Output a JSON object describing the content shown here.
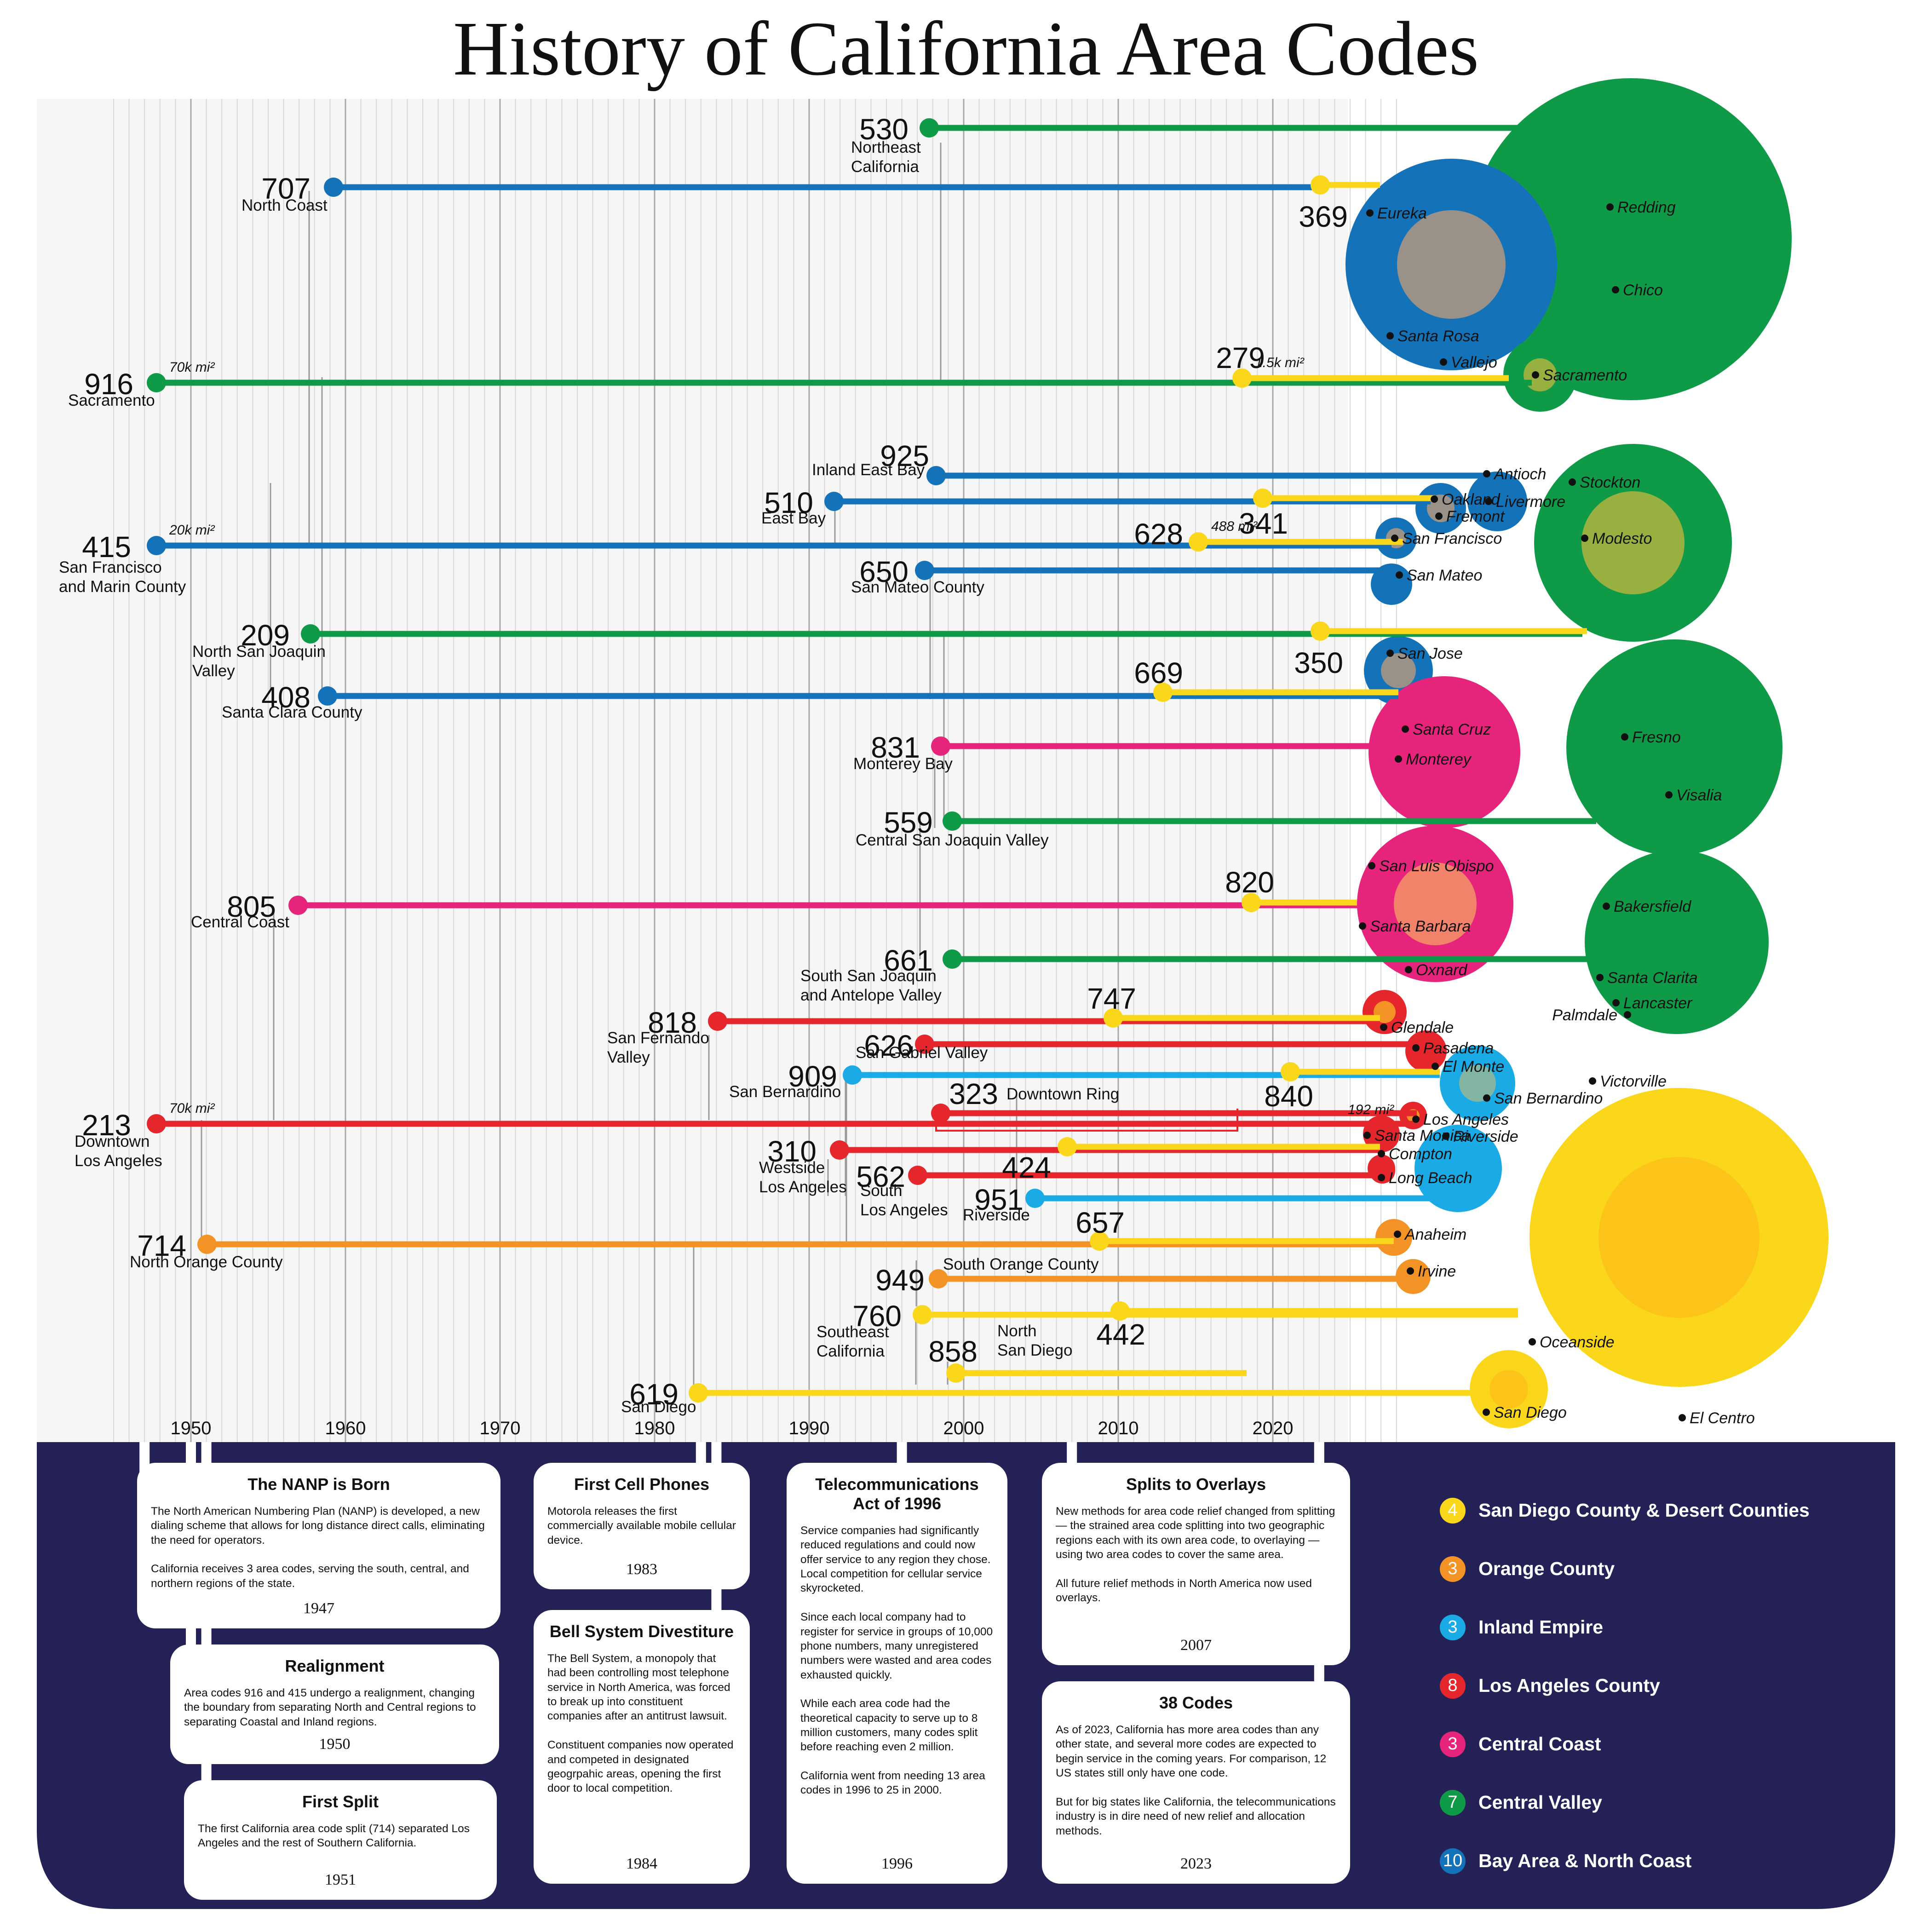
{
  "title": "History of California Area Codes",
  "colors": {
    "sandiego": "#fbd71b",
    "orange": "#f39325",
    "inland": "#1aaae6",
    "la": "#e5262c",
    "central_coast": "#e7247b",
    "central_valley": "#0f9a48",
    "bay": "#1472b9",
    "navy": "#242157"
  },
  "axis": {
    "years": [
      1950,
      1960,
      1970,
      1980,
      1990,
      2000,
      2010,
      2020
    ]
  },
  "codes": [
    {
      "code": "530",
      "region": "Northeast California",
      "year": 1997,
      "group": "central_valley"
    },
    {
      "code": "707",
      "region": "North Coast",
      "year": 1959,
      "group": "bay"
    },
    {
      "code": "369",
      "region": "",
      "year": 2023,
      "group": "sandiego_overlay"
    },
    {
      "code": "916",
      "region": "Sacramento",
      "year": 1947,
      "group": "central_valley",
      "area_note": "70k mi²"
    },
    {
      "code": "279",
      "region": "",
      "year": 2018,
      "group": "overlay",
      "area_note": "1.5k mi²"
    },
    {
      "code": "925",
      "region": "Inland East Bay",
      "year": 1998,
      "group": "bay"
    },
    {
      "code": "510",
      "region": "East Bay",
      "year": 1991,
      "group": "bay"
    },
    {
      "code": "341",
      "region": "",
      "year": 2019,
      "group": "overlay"
    },
    {
      "code": "415",
      "region": "San Francisco and Marin County",
      "year": 1947,
      "group": "bay",
      "area_note": "20k mi²"
    },
    {
      "code": "628",
      "region": "",
      "year": 2015,
      "group": "overlay",
      "area_note": "488 mi²"
    },
    {
      "code": "650",
      "region": "San Mateo County",
      "year": 1997,
      "group": "bay"
    },
    {
      "code": "209",
      "region": "North San Joaquin Valley",
      "year": 1958,
      "group": "central_valley"
    },
    {
      "code": "350",
      "region": "",
      "year": 2022,
      "group": "overlay"
    },
    {
      "code": "408",
      "region": "Santa Clara County",
      "year": 1959,
      "group": "bay"
    },
    {
      "code": "669",
      "region": "",
      "year": 2012,
      "group": "overlay"
    },
    {
      "code": "831",
      "region": "Monterey Bay",
      "year": 1998,
      "group": "central_coast"
    },
    {
      "code": "559",
      "region": "Central San Joaquin Valley",
      "year": 1998,
      "group": "central_valley"
    },
    {
      "code": "805",
      "region": "Central Coast",
      "year": 1957,
      "group": "central_coast"
    },
    {
      "code": "820",
      "region": "",
      "year": 2018,
      "group": "overlay"
    },
    {
      "code": "661",
      "region": "South San Joaquin and Antelope Valley",
      "year": 1999,
      "group": "central_valley"
    },
    {
      "code": "818",
      "region": "San Fernando Valley",
      "year": 1984,
      "group": "la"
    },
    {
      "code": "747",
      "region": "",
      "year": 2009,
      "group": "overlay"
    },
    {
      "code": "626",
      "region": "San Gabriel Valley",
      "year": 1997,
      "group": "la"
    },
    {
      "code": "909",
      "region": "San Bernardino",
      "year": 1992,
      "group": "inland"
    },
    {
      "code": "840",
      "region": "",
      "year": 2021,
      "group": "overlay"
    },
    {
      "code": "323",
      "region": "Downtown Ring",
      "year": 1998,
      "group": "la"
    },
    {
      "code": "213",
      "region": "Downtown Los Angeles",
      "year": 1947,
      "group": "la",
      "area_note": "70k mi²"
    },
    {
      "code": "310",
      "region": "Westside Los Angeles",
      "year": 1991,
      "group": "la"
    },
    {
      "code": "424",
      "region": "",
      "year": 2006,
      "group": "overlay"
    },
    {
      "code": "562",
      "region": "South Los Angeles",
      "year": 1997,
      "group": "la"
    },
    {
      "code": "951",
      "region": "Riverside",
      "year": 2004,
      "group": "inland"
    },
    {
      "code": "714",
      "region": "North Orange County",
      "year": 1951,
      "group": "orange"
    },
    {
      "code": "657",
      "region": "",
      "year": 2008,
      "group": "overlay"
    },
    {
      "code": "949",
      "region": "South Orange County",
      "year": 1998,
      "group": "orange"
    },
    {
      "code": "760",
      "region": "Southeast California",
      "year": 1997,
      "group": "sandiego"
    },
    {
      "code": "442",
      "region": "",
      "year": 2009,
      "group": "overlay"
    },
    {
      "code": "858",
      "region": "North San Diego",
      "year": 1999,
      "group": "sandiego"
    },
    {
      "code": "619",
      "region": "San Diego",
      "year": 1982,
      "group": "sandiego"
    }
  ],
  "area_note_192": "192 mi²",
  "cities": [
    "Redding",
    "Chico",
    "Eureka",
    "Santa Rosa",
    "Vallejo",
    "Sacramento",
    "Antioch",
    "Oakland",
    "Livermore",
    "Fremont",
    "San Francisco",
    "Stockton",
    "Modesto",
    "San Mateo",
    "San Jose",
    "Santa Cruz",
    "Monterey",
    "Fresno",
    "Visalia",
    "San Luis Obispo",
    "Santa Barbara",
    "Oxnard",
    "Bakersfield",
    "Santa Clarita",
    "Lancaster",
    "Palmdale",
    "Glendale",
    "Pasadena",
    "El Monte",
    "Victorville",
    "San Bernardino",
    "Los Angeles",
    "Santa Monica",
    "Riverside",
    "Compton",
    "Long Beach",
    "Anaheim",
    "Irvine",
    "Oceanside",
    "San Diego",
    "El Centro"
  ],
  "events": [
    {
      "title": "The NANP is Born",
      "body": "The North American Numbering Plan (NANP) is developed, a new dialing scheme that allows for long distance direct calls, eliminating the need for operators.\n\nCalifornia receives 3 area codes, serving the south, central, and northern regions of the state.",
      "year": "1947"
    },
    {
      "title": "Realignment",
      "body": "Area codes 916 and 415 undergo a realignment, changing the boundary from separating North and Central regions to separating Coastal and Inland regions.",
      "year": "1950"
    },
    {
      "title": "First Split",
      "body": "The first California area code split (714) separated Los Angeles and the rest of Southern California.",
      "year": "1951"
    },
    {
      "title": "First Cell Phones",
      "body": "Motorola releases the first commercially available mobile cellular device.",
      "year": "1983"
    },
    {
      "title": "Bell System Divestiture",
      "body": "The Bell System, a monopoly that had been controlling most telephone service in North America, was forced to break up into constituent companies after an antitrust lawsuit.\n\nConstituent companies now operated and competed in designated geogrpahic areas, opening the first door to local competition.",
      "year": "1984"
    },
    {
      "title": "Telecommunications Act of 1996",
      "body": "Service companies had significantly reduced regulations and could now offer service to any region they chose. Local competition for cellular service skyrocketed.\n\nSince each local company had to register for service in groups of 10,000 phone numbers, many unregistered numbers were wasted and area codes exhausted quickly.\n\nWhile each area code had the theoretical capacity to serve up to 8 million customers, many codes split before reaching even 2 million.\n\nCalifornia went from needing 13 area codes in 1996 to 25 in 2000.",
      "year": "1996"
    },
    {
      "title": "Splits to Overlays",
      "body": "New methods for area code relief changed from splitting — the strained area code splitting into two geographic regions each with its own area code, to overlaying — using two area codes to cover the same area.\n\nAll future relief methods in North America now used overlays.",
      "year": "2007"
    },
    {
      "title": "38 Codes",
      "body": "As of 2023, California has more area codes than any other state, and several more codes are expected to begin service in the coming years. For comparison, 12 US states still only have one code.\n\nBut for big states like California, the telecommunications industry is in dire need of new relief and allocation methods.",
      "year": "2023"
    }
  ],
  "legend": [
    {
      "count": "4",
      "label": "San Diego County & Desert Counties",
      "color": "#fbd71b"
    },
    {
      "count": "3",
      "label": "Orange County",
      "color": "#f39325"
    },
    {
      "count": "3",
      "label": "Inland Empire",
      "color": "#1aaae6"
    },
    {
      "count": "8",
      "label": "Los Angeles County",
      "color": "#e5262c"
    },
    {
      "count": "3",
      "label": "Central Coast",
      "color": "#e7247b"
    },
    {
      "count": "7",
      "label": "Central Valley",
      "color": "#0f9a48"
    },
    {
      "count": "10",
      "label": "Bay Area & North Coast",
      "color": "#1472b9"
    }
  ]
}
